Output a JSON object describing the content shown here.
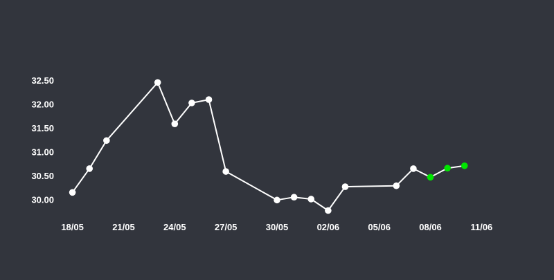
{
  "chart_data": {
    "type": "line",
    "title": "",
    "xlabel": "",
    "ylabel": "",
    "background_color": "#32353d",
    "line_color": "#ffffff",
    "text_color": "#ffffff",
    "grid": false,
    "legend": "none",
    "year": 2024,
    "xlim": [
      "2024-05-17",
      "2024-06-12"
    ],
    "ylim": [
      29.7,
      32.75
    ],
    "x_ticks": [
      "18/05",
      "21/05",
      "24/05",
      "27/05",
      "30/05",
      "02/06",
      "05/06",
      "08/06",
      "11/06"
    ],
    "y_ticks": [
      "30.00",
      "30.50",
      "31.00",
      "31.50",
      "32.00",
      "32.50"
    ],
    "series": [
      {
        "name": "",
        "color": "#ffffff",
        "points": [
          {
            "date": "2024-05-18",
            "value": 30.16
          },
          {
            "date": "2024-05-19",
            "value": 30.66
          },
          {
            "date": "2024-05-20",
            "value": 31.25
          },
          {
            "date": "2024-05-23",
            "value": 32.47
          },
          {
            "date": "2024-05-24",
            "value": 31.6
          },
          {
            "date": "2024-05-25",
            "value": 32.04
          },
          {
            "date": "2024-05-26",
            "value": 32.11
          },
          {
            "date": "2024-05-27",
            "value": 30.6
          },
          {
            "date": "2024-05-30",
            "value": 30.0
          },
          {
            "date": "2024-05-31",
            "value": 30.06
          },
          {
            "date": "2024-06-01",
            "value": 30.02
          },
          {
            "date": "2024-06-02",
            "value": 29.78
          },
          {
            "date": "2024-06-03",
            "value": 30.28
          },
          {
            "date": "2024-06-06",
            "value": 30.3
          },
          {
            "date": "2024-06-07",
            "value": 30.66
          },
          {
            "date": "2024-06-08",
            "value": 30.48
          },
          {
            "date": "2024-06-09",
            "value": 30.67
          },
          {
            "date": "2024-06-10",
            "value": 30.72
          }
        ],
        "highlight_color": "#00e600",
        "highlight_dates": [
          "2024-06-08",
          "2024-06-09",
          "2024-06-10"
        ]
      }
    ]
  }
}
